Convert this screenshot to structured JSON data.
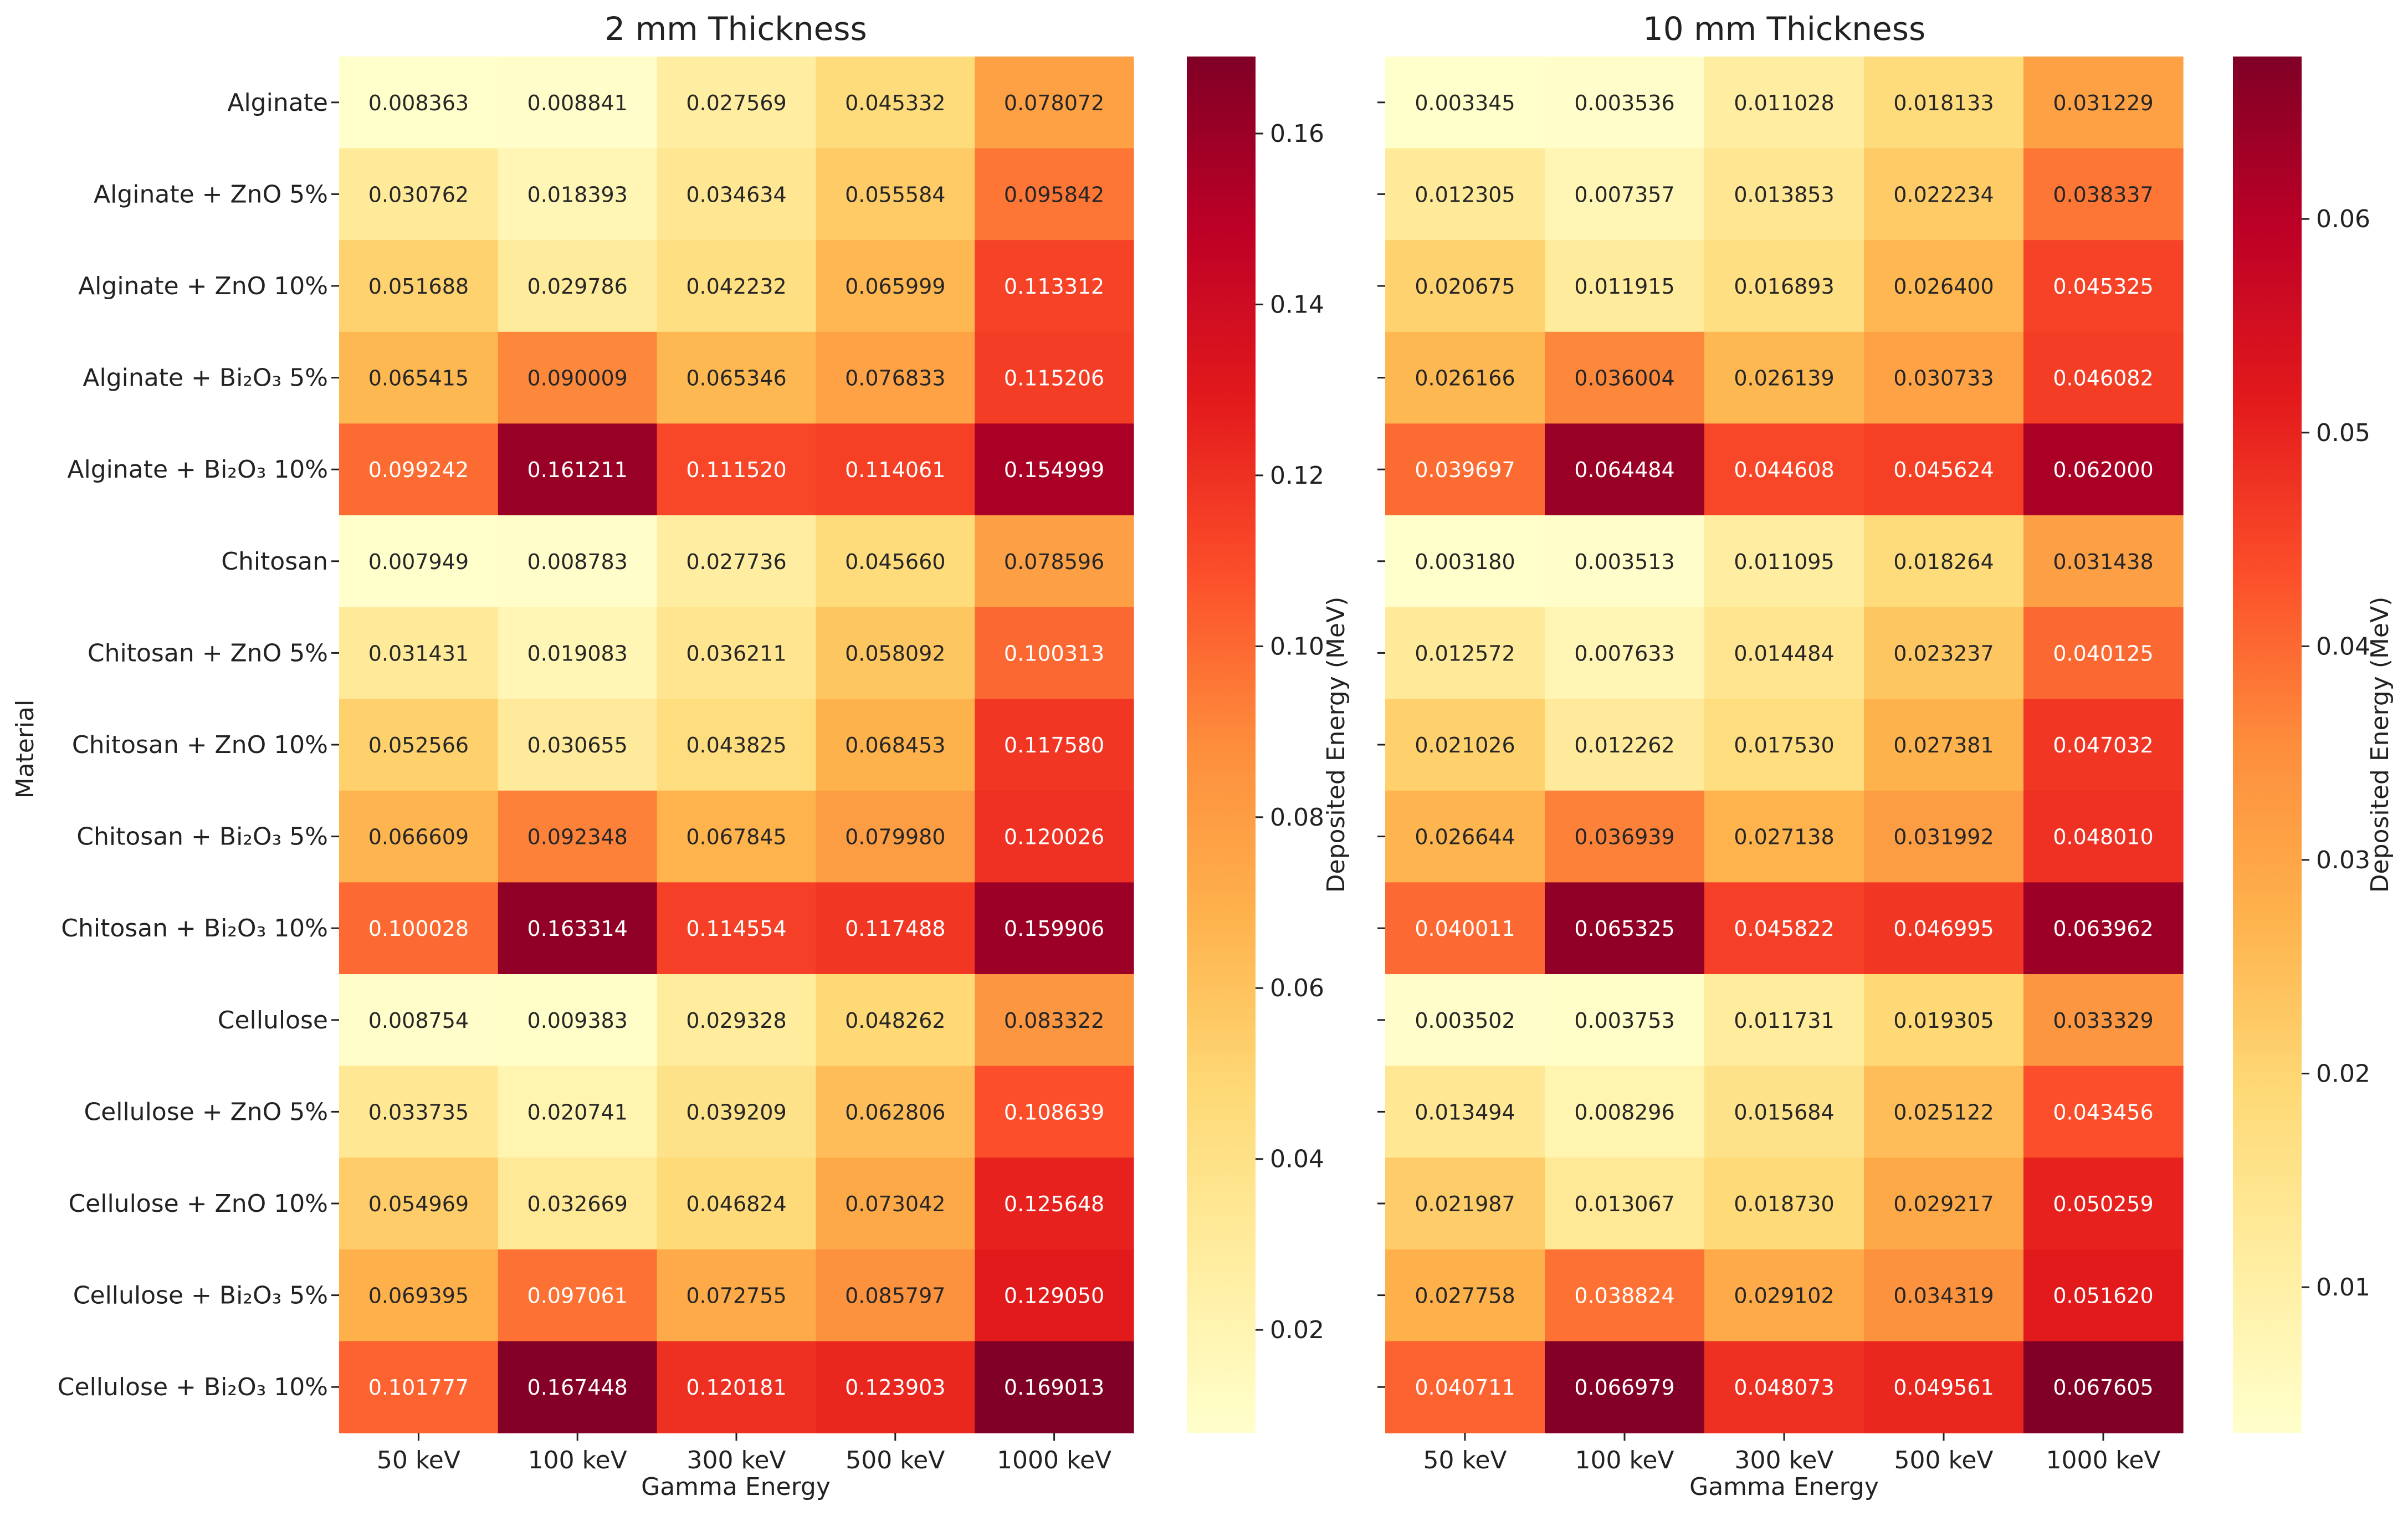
{
  "chart_data": [
    {
      "type": "heatmap",
      "title": "2 mm Thickness",
      "xlabel": "Gamma Energy",
      "ylabel": "Material",
      "categories": [
        "50 keV",
        "100 keV",
        "300 keV",
        "500 keV",
        "1000 keV"
      ],
      "rows": [
        "Alginate",
        "Alginate + ZnO 5%",
        "Alginate + ZnO 10%",
        "Alginate + Bi₂O₃ 5%",
        "Alginate + Bi₂O₃ 10%",
        "Chitosan",
        "Chitosan + ZnO 5%",
        "Chitosan + ZnO 10%",
        "Chitosan + Bi₂O₃ 5%",
        "Chitosan + Bi₂O₃ 10%",
        "Cellulose",
        "Cellulose + ZnO 5%",
        "Cellulose + ZnO 10%",
        "Cellulose + Bi₂O₃ 5%",
        "Cellulose + Bi₂O₃ 10%"
      ],
      "values": [
        [
          "0.008363",
          "0.008841",
          "0.027569",
          "0.045332",
          "0.078072"
        ],
        [
          "0.030762",
          "0.018393",
          "0.034634",
          "0.055584",
          "0.095842"
        ],
        [
          "0.051688",
          "0.029786",
          "0.042232",
          "0.065999",
          "0.113312"
        ],
        [
          "0.065415",
          "0.090009",
          "0.065346",
          "0.076833",
          "0.115206"
        ],
        [
          "0.099242",
          "0.161211",
          "0.111520",
          "0.114061",
          "0.154999"
        ],
        [
          "0.007949",
          "0.008783",
          "0.027736",
          "0.045660",
          "0.078596"
        ],
        [
          "0.031431",
          "0.019083",
          "0.036211",
          "0.058092",
          "0.100313"
        ],
        [
          "0.052566",
          "0.030655",
          "0.043825",
          "0.068453",
          "0.117580"
        ],
        [
          "0.066609",
          "0.092348",
          "0.067845",
          "0.079980",
          "0.120026"
        ],
        [
          "0.100028",
          "0.163314",
          "0.114554",
          "0.117488",
          "0.159906"
        ],
        [
          "0.008754",
          "0.009383",
          "0.029328",
          "0.048262",
          "0.083322"
        ],
        [
          "0.033735",
          "0.020741",
          "0.039209",
          "0.062806",
          "0.108639"
        ],
        [
          "0.054969",
          "0.032669",
          "0.046824",
          "0.073042",
          "0.125648"
        ],
        [
          "0.069395",
          "0.097061",
          "0.072755",
          "0.085797",
          "0.129050"
        ],
        [
          "0.101777",
          "0.167448",
          "0.120181",
          "0.123903",
          "0.169013"
        ]
      ],
      "colorbar": {
        "label": "Deposited Energy (MeV)",
        "min": 0.007949,
        "max": 0.169013,
        "ticks": [
          "0.02",
          "0.04",
          "0.06",
          "0.08",
          "0.10",
          "0.12",
          "0.14",
          "0.16"
        ]
      },
      "colormap": "YlOrRd"
    },
    {
      "type": "heatmap",
      "title": "10 mm Thickness",
      "xlabel": "Gamma Energy",
      "categories": [
        "50 keV",
        "100 keV",
        "300 keV",
        "500 keV",
        "1000 keV"
      ],
      "values": [
        [
          "0.003345",
          "0.003536",
          "0.011028",
          "0.018133",
          "0.031229"
        ],
        [
          "0.012305",
          "0.007357",
          "0.013853",
          "0.022234",
          "0.038337"
        ],
        [
          "0.020675",
          "0.011915",
          "0.016893",
          "0.026400",
          "0.045325"
        ],
        [
          "0.026166",
          "0.036004",
          "0.026139",
          "0.030733",
          "0.046082"
        ],
        [
          "0.039697",
          "0.064484",
          "0.044608",
          "0.045624",
          "0.062000"
        ],
        [
          "0.003180",
          "0.003513",
          "0.011095",
          "0.018264",
          "0.031438"
        ],
        [
          "0.012572",
          "0.007633",
          "0.014484",
          "0.023237",
          "0.040125"
        ],
        [
          "0.021026",
          "0.012262",
          "0.017530",
          "0.027381",
          "0.047032"
        ],
        [
          "0.026644",
          "0.036939",
          "0.027138",
          "0.031992",
          "0.048010"
        ],
        [
          "0.040011",
          "0.065325",
          "0.045822",
          "0.046995",
          "0.063962"
        ],
        [
          "0.003502",
          "0.003753",
          "0.011731",
          "0.019305",
          "0.033329"
        ],
        [
          "0.013494",
          "0.008296",
          "0.015684",
          "0.025122",
          "0.043456"
        ],
        [
          "0.021987",
          "0.013067",
          "0.018730",
          "0.029217",
          "0.050259"
        ],
        [
          "0.027758",
          "0.038824",
          "0.029102",
          "0.034319",
          "0.051620"
        ],
        [
          "0.040711",
          "0.066979",
          "0.048073",
          "0.049561",
          "0.067605"
        ]
      ],
      "colorbar": {
        "label": "Deposited Energy (MeV)",
        "min": 0.00318,
        "max": 0.067605,
        "ticks": [
          "0.01",
          "0.02",
          "0.03",
          "0.04",
          "0.05",
          "0.06"
        ]
      },
      "colormap": "YlOrRd"
    }
  ]
}
